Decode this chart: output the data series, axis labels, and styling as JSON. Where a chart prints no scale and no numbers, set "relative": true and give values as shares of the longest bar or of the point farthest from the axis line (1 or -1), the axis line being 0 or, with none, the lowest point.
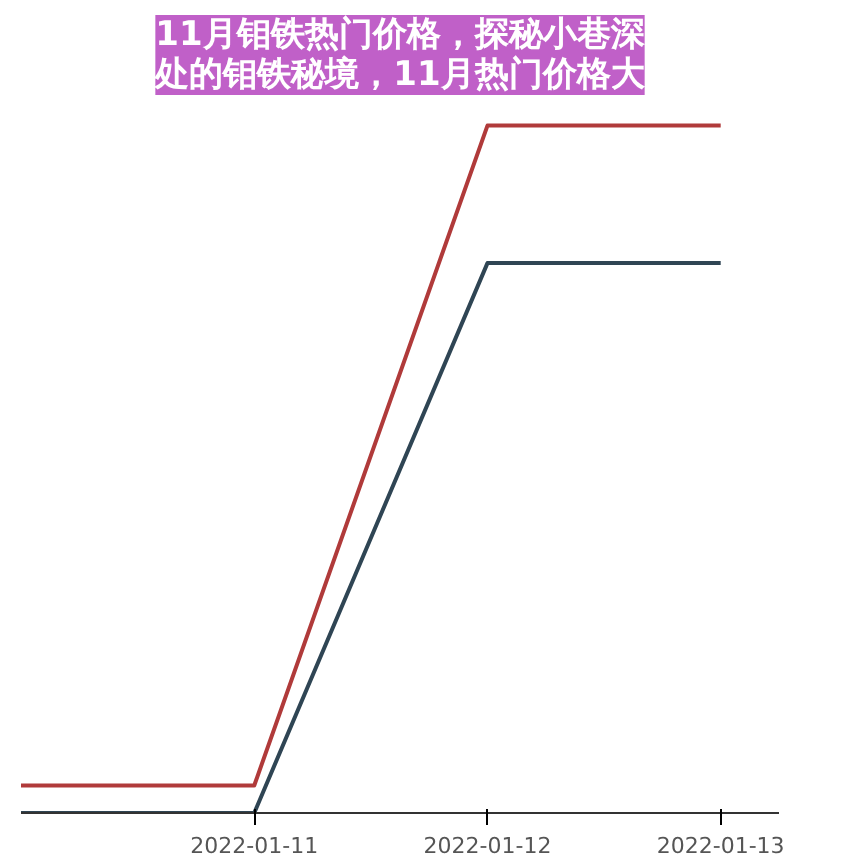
{
  "chart_data": {
    "type": "line",
    "title": "11月钼铁热门价格，探秘小巷深处的钼铁秘境，11月热门价格大",
    "relative": true,
    "x": [
      "2022-01-10",
      "2022-01-11",
      "2022-01-12",
      "2022-01-13"
    ],
    "xlim": [
      "2022-01-10",
      "2022-01-13T06:00"
    ],
    "xticks": [
      "2022-01-11",
      "2022-01-12",
      "2022-01-13"
    ],
    "series": [
      {
        "color": "#b03a3a",
        "values": [
          0.04,
          0.04,
          1,
          1
        ]
      },
      {
        "color": "#2f4554",
        "values": [
          0,
          0,
          0.8,
          0.8
        ]
      }
    ],
    "line_style": "solid",
    "marker": "none"
  }
}
